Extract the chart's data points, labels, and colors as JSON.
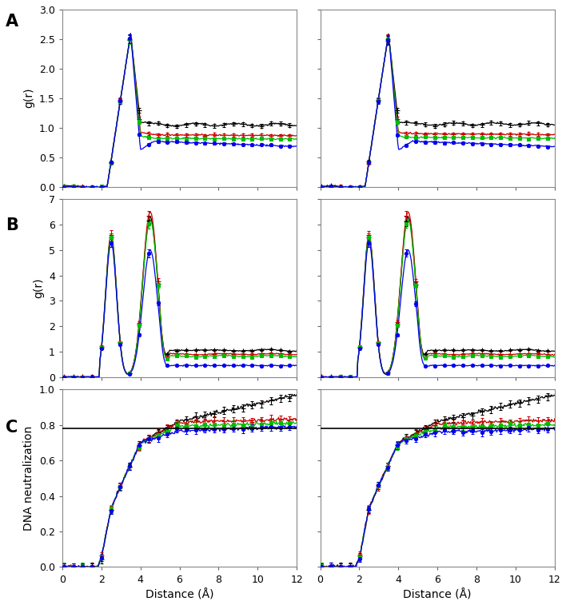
{
  "colors": [
    "#000000",
    "#cc0000",
    "#00bb00",
    "#0000ee"
  ],
  "markers": [
    "+",
    "+",
    "s",
    "o"
  ],
  "markersizes": [
    4,
    4,
    3,
    3
  ],
  "panel_labels": [
    "A",
    "B",
    "C"
  ],
  "ylabel_A": "g(r)",
  "ylabel_B": "g(r)",
  "ylabel_C": "DNA neutralization",
  "xlabel": "Distance (Å)",
  "xlim": [
    0,
    12
  ],
  "ylim_A": [
    0,
    3
  ],
  "ylim_B": [
    0,
    7
  ],
  "ylim_C": [
    0,
    1
  ],
  "yticks_A": [
    0,
    0.5,
    1.0,
    1.5,
    2.0,
    2.5,
    3.0
  ],
  "yticks_B": [
    0,
    1,
    2,
    3,
    4,
    5,
    6,
    7
  ],
  "yticks_C": [
    0,
    0.2,
    0.4,
    0.6,
    0.8,
    1.0
  ],
  "xticks": [
    0,
    2,
    4,
    6,
    8,
    10,
    12
  ],
  "neutralization_line": 0.78,
  "bg_color": "#f0f0f0"
}
